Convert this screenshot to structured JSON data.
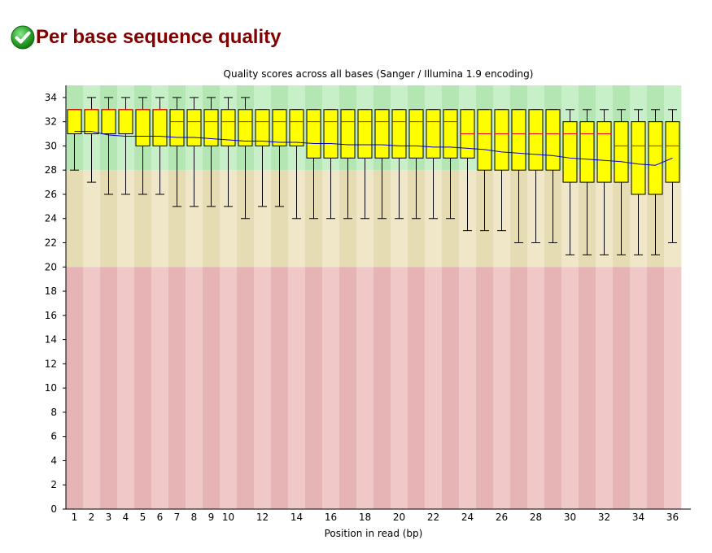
{
  "page": {
    "title": "Per base sequence quality",
    "status_icon": "pass-check-icon"
  },
  "chart_data": {
    "type": "box",
    "title": "Quality scores across all bases (Sanger / Illumina 1.9 encoding)",
    "xlabel": "Position in read (bp)",
    "ylabel": "",
    "ylim": [
      0,
      35
    ],
    "yticks": [
      0,
      2,
      4,
      6,
      8,
      10,
      12,
      14,
      16,
      18,
      20,
      22,
      24,
      26,
      28,
      30,
      32,
      34
    ],
    "xtick_labels": [
      "1",
      "2",
      "3",
      "4",
      "5",
      "6",
      "7",
      "8",
      "9",
      "10",
      "12",
      "14",
      "16",
      "18",
      "20",
      "22",
      "24",
      "26",
      "28",
      "30",
      "32",
      "34",
      "36"
    ],
    "xtick_positions": [
      1,
      2,
      3,
      4,
      5,
      6,
      7,
      8,
      9,
      10,
      12,
      14,
      16,
      18,
      20,
      22,
      24,
      26,
      28,
      30,
      32,
      34,
      36
    ],
    "zones": [
      {
        "from": 28,
        "to": 35,
        "color": "#b4e6b4",
        "alt_color": "#c8f0c8"
      },
      {
        "from": 20,
        "to": 28,
        "color": "#e6dcb4",
        "alt_color": "#f0e6c8"
      },
      {
        "from": 0,
        "to": 20,
        "color": "#e6b4b4",
        "alt_color": "#f0c8c8"
      }
    ],
    "colors": {
      "box": "#ffff00",
      "median": "#ff0000",
      "mean": "#0000cc",
      "whisker": "#000000"
    },
    "positions": [
      1,
      2,
      3,
      4,
      5,
      6,
      7,
      8,
      9,
      10,
      11,
      12,
      13,
      14,
      15,
      16,
      17,
      18,
      19,
      20,
      21,
      22,
      23,
      24,
      25,
      26,
      27,
      28,
      29,
      30,
      31,
      32,
      33,
      34,
      35,
      36
    ],
    "q1": [
      31,
      31,
      31,
      31,
      30,
      30,
      30,
      30,
      30,
      30,
      30,
      30,
      30,
      30,
      29,
      29,
      29,
      29,
      29,
      29,
      29,
      29,
      29,
      29,
      28,
      28,
      28,
      28,
      28,
      27,
      27,
      27,
      27,
      26,
      26,
      27
    ],
    "median": [
      33,
      33,
      33,
      33,
      33,
      33,
      32,
      32,
      32,
      32,
      32,
      32,
      32,
      32,
      32,
      32,
      32,
      32,
      32,
      32,
      32,
      32,
      32,
      31,
      31,
      31,
      31,
      31,
      31,
      31,
      31,
      31,
      30,
      30,
      30,
      30
    ],
    "q3": [
      33,
      33,
      33,
      33,
      33,
      33,
      33,
      33,
      33,
      33,
      33,
      33,
      33,
      33,
      33,
      33,
      33,
      33,
      33,
      33,
      33,
      33,
      33,
      33,
      33,
      33,
      33,
      33,
      33,
      32,
      32,
      32,
      32,
      32,
      32,
      32
    ],
    "low": [
      28,
      27,
      26,
      26,
      26,
      26,
      25,
      25,
      25,
      25,
      24,
      25,
      25,
      24,
      24,
      24,
      24,
      24,
      24,
      24,
      24,
      24,
      24,
      23,
      23,
      23,
      22,
      22,
      22,
      21,
      21,
      21,
      21,
      21,
      21,
      22
    ],
    "high": [
      33,
      34,
      34,
      34,
      34,
      34,
      34,
      34,
      34,
      34,
      34,
      33,
      33,
      33,
      33,
      33,
      33,
      33,
      33,
      33,
      33,
      33,
      33,
      33,
      33,
      33,
      33,
      33,
      33,
      33,
      33,
      33,
      33,
      33,
      33,
      33
    ],
    "mean": [
      31.2,
      31.2,
      30.9,
      30.8,
      30.8,
      30.8,
      30.7,
      30.7,
      30.6,
      30.5,
      30.4,
      30.4,
      30.3,
      30.3,
      30.2,
      30.2,
      30.1,
      30.1,
      30.1,
      30.0,
      30.0,
      29.9,
      29.9,
      29.8,
      29.7,
      29.5,
      29.4,
      29.3,
      29.2,
      29.0,
      28.9,
      28.8,
      28.7,
      28.5,
      28.4,
      29.0
    ]
  }
}
